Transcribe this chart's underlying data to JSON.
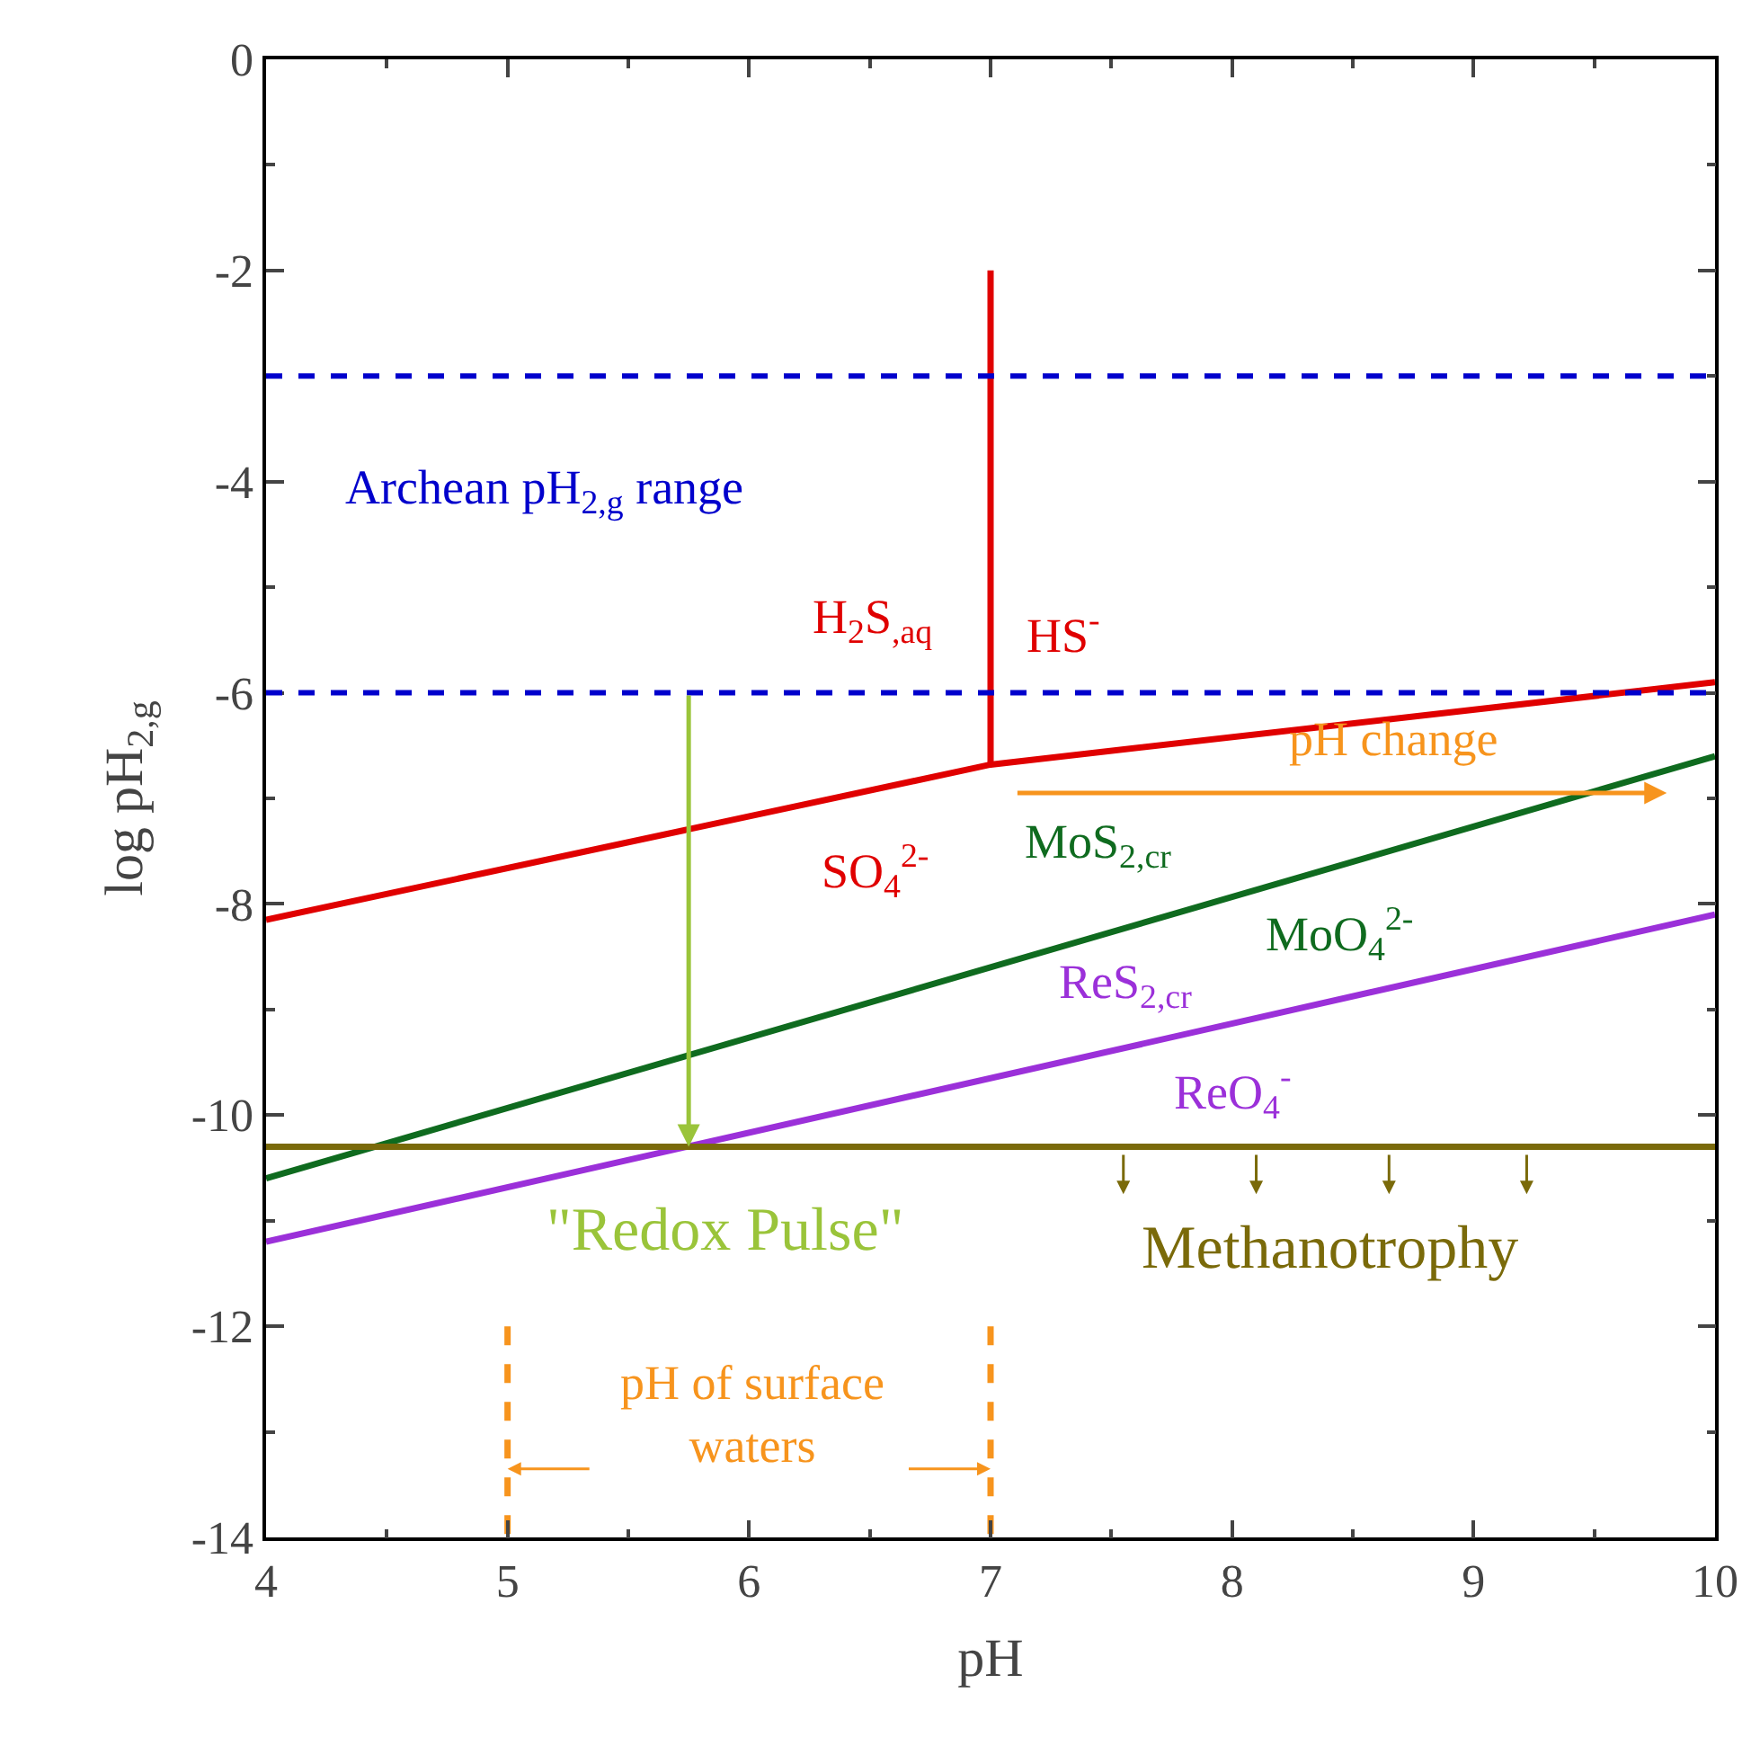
{
  "chart_data": {
    "type": "line",
    "xlabel": "pH",
    "ylabel": "log pH$_{2,g}$",
    "xlim": [
      4,
      10
    ],
    "xticks": [
      4,
      5,
      6,
      7,
      8,
      9,
      10
    ],
    "ylim": [
      -14,
      0
    ],
    "yticks": [
      0,
      -2,
      -4,
      -6,
      -8,
      -10,
      -12,
      -14
    ],
    "grid": false,
    "marker": "none",
    "series": [
      {
        "color": "#e00000",
        "x": [
          4,
          7,
          10
        ],
        "values": [
          -8.15,
          -6.68,
          -5.9
        ]
      },
      {
        "color": "#e00000",
        "x": [
          7,
          7
        ],
        "values": [
          -6.68,
          -2
        ]
      },
      {
        "color": "#0f6b1f",
        "x": [
          4,
          10
        ],
        "values": [
          -10.6,
          -6.6
        ]
      },
      {
        "color": "#9b30d9",
        "x": [
          4,
          10
        ],
        "values": [
          -11.2,
          -8.1
        ]
      },
      {
        "color": "#7a6a0a",
        "x": [
          4,
          10
        ],
        "values": [
          -10.3,
          -10.3
        ]
      },
      {
        "color": "#f7941d",
        "x": [
          5,
          5
        ],
        "values": [
          -12,
          -14
        ],
        "line_style": "dashed"
      },
      {
        "color": "#f7941d",
        "x": [
          7,
          7
        ],
        "values": [
          -12,
          -14
        ],
        "line_style": "dashed"
      }
    ],
    "ref_lines": [
      {
        "axis": "y",
        "value": -3,
        "color": "#0000cc",
        "line_style": "dashed"
      },
      {
        "axis": "y",
        "value": -6,
        "color": "#0000cc",
        "line_style": "dashed"
      }
    ],
    "annotations": [
      "Archean pH$_{2,g}$ range",
      "H$_{2}$S$_{,aq}$",
      "HS$^{-}$",
      "SO$_{4}$$^{2-}$",
      "MoS$_{2,cr}$",
      "MoO$_{4}$$^{2-}$",
      "ReS$_{2,cr}$",
      "ReO$_{4}$$^{-}$",
      "pH change",
      "\"Redox Pulse\"",
      "Methanotrophy",
      "pH of surface\nwaters"
    ]
  }
}
